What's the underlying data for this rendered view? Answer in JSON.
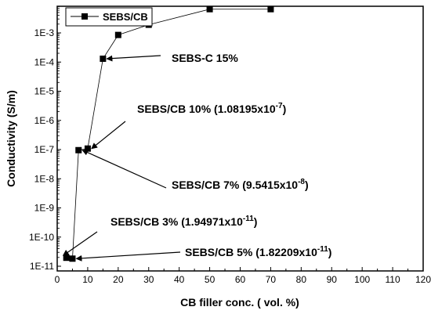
{
  "chart_data": {
    "type": "scatter",
    "xlabel": "CB filler conc. ( vol. %)",
    "ylabel": "Conductivity (S/m)",
    "xlim": [
      0,
      120
    ],
    "ylim_exponent": [
      -11,
      -2
    ],
    "y_scale": "log",
    "x_ticks": [
      "0",
      "10",
      "20",
      "30",
      "40",
      "50",
      "60",
      "70",
      "80",
      "90",
      "100",
      "110",
      "120"
    ],
    "y_ticks": [
      "1E-11",
      "1E-10",
      "1E-9",
      "1E-8",
      "1E-7",
      "1E-6",
      "1E-5",
      "1E-4",
      "1E-3"
    ],
    "legend_placement": "top-left",
    "series": [
      {
        "name": "SEBS/CB",
        "marker": "square",
        "color": "#000000",
        "x": [
          3,
          5,
          7,
          10,
          15,
          20,
          30,
          50,
          70
        ],
        "y": [
          1.94971e-11,
          1.82209e-11,
          9.5415e-08,
          1.08195e-07,
          0.00013,
          0.00085,
          0.0019,
          0.0065,
          0.0065
        ]
      }
    ],
    "annotations": [
      {
        "text": "SEBS-C 15%",
        "target": [
          15,
          0.00013
        ]
      },
      {
        "text": "SEBS/CB 10% (1.08195x10",
        "sup": "-7",
        "close": ")",
        "target": [
          10,
          1.08195e-07
        ]
      },
      {
        "text": "SEBS/CB 7% (9.5415x10",
        "sup": "-8",
        "close": ")",
        "target": [
          7,
          9.5415e-08
        ]
      },
      {
        "text": "SEBS/CB 3% (1.94971x10",
        "sup": "-11",
        "close": ")",
        "target": [
          3,
          1.94971e-11
        ]
      },
      {
        "text": "SEBS/CB 5% (1.82209x10",
        "sup": "-11",
        "close": ")",
        "target": [
          5,
          1.82209e-11
        ]
      }
    ]
  }
}
